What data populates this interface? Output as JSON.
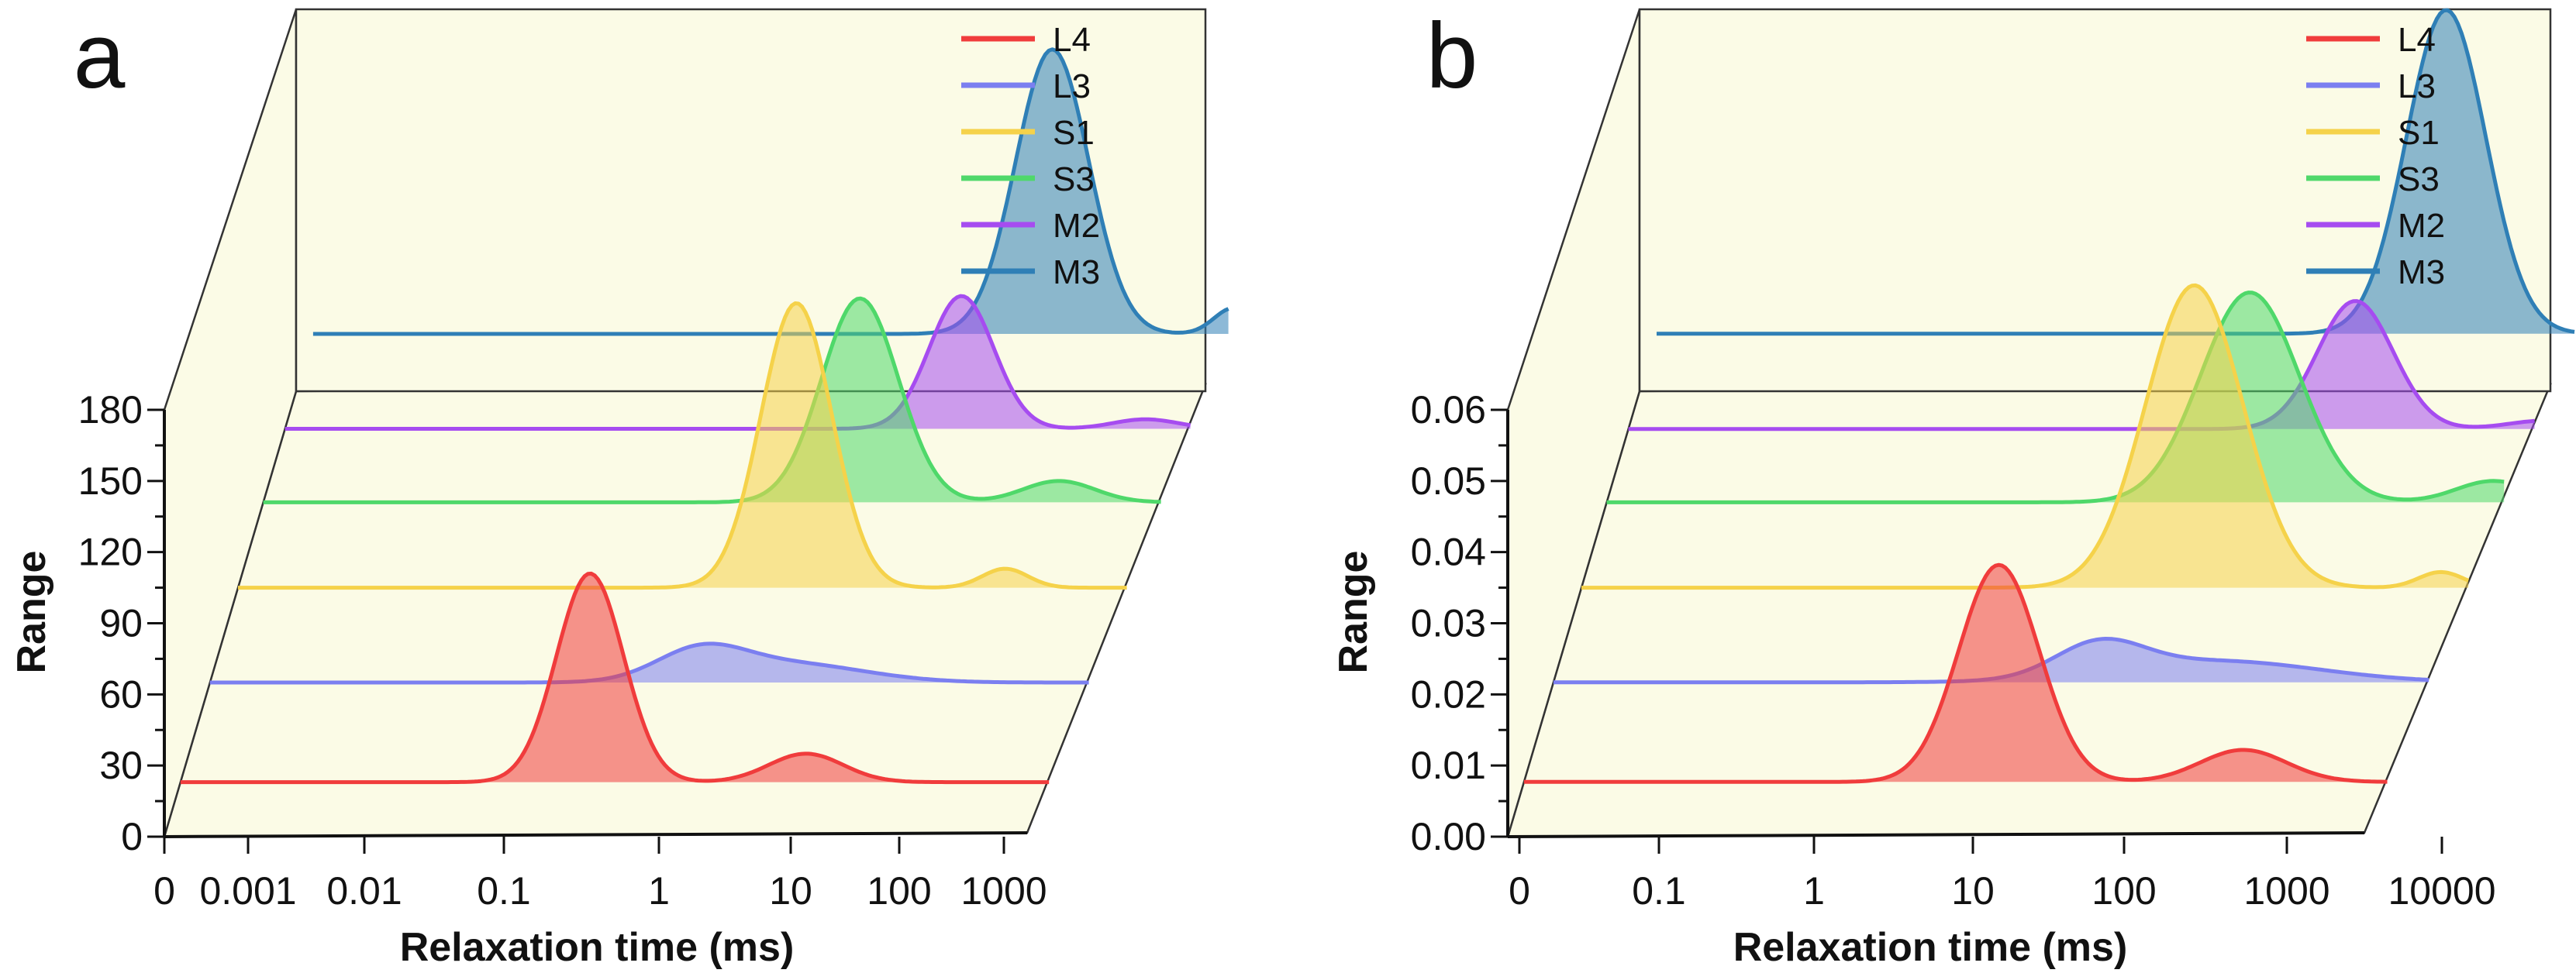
{
  "colors": {
    "background": "#fbfbe6",
    "L4": "#f03c3c",
    "L3": "#7b7ff0",
    "S1": "#f5d24a",
    "S3": "#4fd86a",
    "M2": "#a64cf0",
    "M3": "#2f7fb6"
  },
  "panels": [
    {
      "id": "a",
      "label": "a",
      "legend": [
        "L4",
        "L3",
        "S1",
        "S3",
        "M2",
        "M3"
      ],
      "chart_data": {
        "type": "area",
        "title": "",
        "xlabel": "Relaxation time (ms)",
        "ylabel": "Range",
        "xscale": "log",
        "x_ticks": [
          "0",
          "0.001",
          "0.01",
          "0.1",
          "1",
          "10",
          "100",
          "1000"
        ],
        "x_tick_values": [
          0.0001,
          0.001,
          0.01,
          0.1,
          1,
          10,
          100,
          1000
        ],
        "y_ticks": [
          "0",
          "30",
          "60",
          "90",
          "120",
          "150",
          "180"
        ],
        "ylim": [
          0,
          180
        ],
        "series": [
          {
            "name": "L4",
            "baseline": 23,
            "peaks": [
              {
                "center": 0.2,
                "height": 88,
                "width_decades": 0.27
              },
              {
                "center": 11,
                "height": 12,
                "width_decades": 0.3
              }
            ]
          },
          {
            "name": "L3",
            "baseline": 65,
            "peaks": [
              {
                "center": 0.8,
                "height": 12,
                "width_decades": 0.35
              },
              {
                "center": 4,
                "height": 8,
                "width_decades": 0.6
              }
            ]
          },
          {
            "name": "S1",
            "baseline": 105,
            "peaks": [
              {
                "center": 2.5,
                "height": 120,
                "width_decades": 0.28
              },
              {
                "center": 110,
                "height": 8,
                "width_decades": 0.18
              }
            ]
          },
          {
            "name": "S3",
            "baseline": 141,
            "peaks": [
              {
                "center": 4.5,
                "height": 86,
                "width_decades": 0.3
              },
              {
                "center": 160,
                "height": 9,
                "width_decades": 0.28
              }
            ]
          },
          {
            "name": "M2",
            "baseline": 172,
            "peaks": [
              {
                "center": 17,
                "height": 56,
                "width_decades": 0.25
              },
              {
                "center": 450,
                "height": 4,
                "width_decades": 0.25
              }
            ]
          },
          {
            "name": "M3",
            "baseline": 212,
            "peaks": [
              {
                "center": 45,
                "height": 120,
                "width_decades": 0.28
              },
              {
                "center": 1100,
                "height": 11,
                "width_decades": 0.15
              }
            ]
          }
        ]
      }
    },
    {
      "id": "b",
      "label": "b",
      "legend": [
        "L4",
        "L3",
        "S1",
        "S3",
        "M2",
        "M3"
      ],
      "chart_data": {
        "type": "area",
        "title": "",
        "xlabel": "Relaxation time (ms)",
        "ylabel": "Range",
        "xscale": "log",
        "x_ticks": [
          "0",
          "0.1",
          "1",
          "10",
          "100",
          "1000",
          "10000"
        ],
        "x_tick_values": [
          0.01,
          0.1,
          1,
          10,
          100,
          1000,
          10000
        ],
        "y_ticks": [
          "0.00",
          "0.01",
          "0.02",
          "0.03",
          "0.04",
          "0.05",
          "0.06"
        ],
        "ylim": [
          0,
          0.06
        ],
        "series": [
          {
            "name": "L4",
            "baseline": 0.0077,
            "peaks": [
              {
                "center": 20,
                "height": 0.0305,
                "width_decades": 0.28
              },
              {
                "center": 1000,
                "height": 0.0045,
                "width_decades": 0.3
              }
            ]
          },
          {
            "name": "L3",
            "baseline": 0.0217,
            "peaks": [
              {
                "center": 55,
                "height": 0.0045,
                "width_decades": 0.3
              },
              {
                "center": 350,
                "height": 0.003,
                "width_decades": 0.7
              }
            ]
          },
          {
            "name": "S1",
            "baseline": 0.035,
            "peaks": [
              {
                "center": 140,
                "height": 0.0425,
                "width_decades": 0.33
              },
              {
                "center": 6500,
                "height": 0.0022,
                "width_decades": 0.15
              }
            ]
          },
          {
            "name": "S3",
            "baseline": 0.047,
            "peaks": [
              {
                "center": 200,
                "height": 0.0295,
                "width_decades": 0.33
              },
              {
                "center": 8500,
                "height": 0.003,
                "width_decades": 0.25
              }
            ]
          },
          {
            "name": "M2",
            "baseline": 0.0573,
            "peaks": [
              {
                "center": 650,
                "height": 0.018,
                "width_decades": 0.25
              },
              {
                "center": 12000,
                "height": 0.0012,
                "width_decades": 0.25
              }
            ]
          },
          {
            "name": "M3",
            "baseline": 0.0707,
            "peaks": [
              {
                "center": 1450,
                "height": 0.0455,
                "width_decades": 0.26
              },
              {
                "center": 45000,
                "height": 0.0033,
                "width_decades": 0.14
              }
            ]
          }
        ]
      }
    }
  ]
}
